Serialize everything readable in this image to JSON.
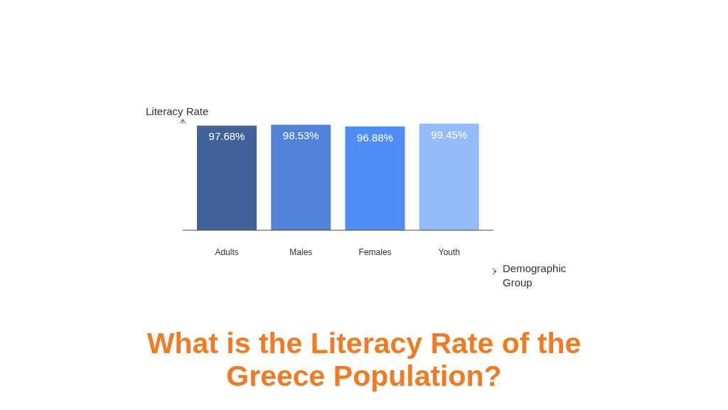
{
  "chart_data": {
    "type": "bar",
    "title": "What is the Literacy Rate of the Greece Population?",
    "xlabel": "Demographic Group",
    "ylabel": "Literacy Rate",
    "categories": [
      "Adults",
      "Males",
      "Females",
      "Youth"
    ],
    "values": [
      97.68,
      98.53,
      96.88,
      99.45
    ],
    "colors": [
      "#41639a",
      "#5184d9",
      "#4f8ef6",
      "#95bbfc"
    ],
    "value_labels": [
      "97.68%",
      "98.53%",
      "96.88%",
      "99.45%"
    ],
    "grid": false,
    "legend": false
  }
}
